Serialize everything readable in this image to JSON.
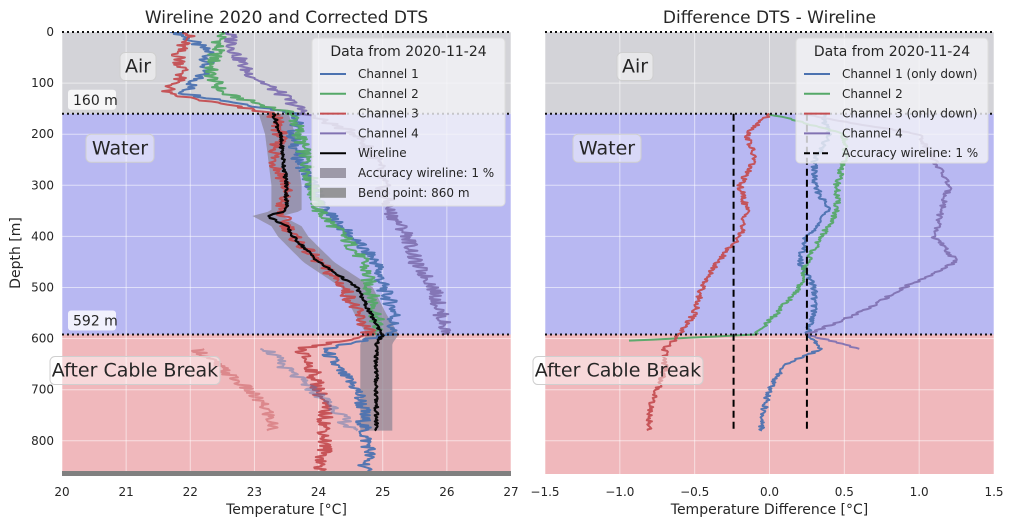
{
  "chart_data": [
    {
      "type": "line",
      "title": "Wireline 2020 and Corrected DTS",
      "xlabel": "Temperature [°C]",
      "ylabel": "Depth [m]",
      "xlim": [
        20,
        27
      ],
      "ylim": [
        865,
        0
      ],
      "xticks": [
        20,
        21,
        22,
        23,
        24,
        25,
        26,
        27
      ],
      "yticks": [
        0,
        100,
        200,
        300,
        400,
        500,
        600,
        700,
        800
      ],
      "grid": true,
      "legend": {
        "title": "Data from 2020-11-24",
        "placement": "top-right",
        "entries": [
          "Channel 1",
          "Channel 2",
          "Channel 3",
          "Channel 4",
          "Wireline",
          "Accuracy wireline: 1 %",
          "Bend point: 860 m"
        ]
      },
      "regions": [
        {
          "label": "Air",
          "from": 0,
          "to": 160,
          "color": "#d3d3d8"
        },
        {
          "label": "Water",
          "from": 160,
          "to": 592,
          "color": "#b8b8f2"
        },
        {
          "label": "After Cable Break",
          "from": 592,
          "to": 865,
          "color": "#f0b8bc"
        }
      ],
      "boundary_labels": [
        "160 m",
        "592 m"
      ],
      "boundaries": [
        160,
        592
      ],
      "bend_point": 860,
      "series": [
        {
          "name": "Channel 1",
          "color": "#4c72b0",
          "depth": [
            0,
            40,
            80,
            120,
            160,
            200,
            250,
            300,
            350,
            400,
            450,
            500,
            550,
            592,
            620,
            660,
            700,
            740,
            780,
            820,
            860
          ],
          "values": [
            21.8,
            22.3,
            22.2,
            21.9,
            23.7,
            23.6,
            23.7,
            23.9,
            24.1,
            24.5,
            24.9,
            25.0,
            25.2,
            25.1,
            24.1,
            24.3,
            24.6,
            24.7,
            24.7,
            24.8,
            24.7
          ]
        },
        {
          "name": "Channel 2",
          "color": "#55a868",
          "depth": [
            0,
            40,
            80,
            120,
            160,
            200,
            250,
            300,
            350,
            400,
            450,
            500,
            550,
            592
          ],
          "values": [
            22.5,
            22.4,
            22.3,
            22.5,
            23.6,
            23.7,
            23.8,
            23.9,
            24.0,
            24.4,
            24.7,
            24.8,
            24.9,
            24.9
          ]
        },
        {
          "name": "Channel 3",
          "color": "#c44e52",
          "depth": [
            0,
            40,
            80,
            120,
            160,
            200,
            250,
            300,
            350,
            400,
            450,
            500,
            550,
            592,
            620,
            660,
            700,
            740,
            780,
            820,
            860
          ],
          "values": [
            22.0,
            21.8,
            21.9,
            21.6,
            23.3,
            23.4,
            23.3,
            23.5,
            23.4,
            23.6,
            24.0,
            24.4,
            24.6,
            24.8,
            23.7,
            23.9,
            24.0,
            24.1,
            24.1,
            24.1,
            24.0
          ]
        },
        {
          "name": "Channel 4",
          "color": "#8172b2",
          "depth": [
            0,
            40,
            80,
            120,
            160,
            200,
            250,
            300,
            350,
            400,
            450,
            500,
            550,
            592
          ],
          "values": [
            22.6,
            22.7,
            22.9,
            23.4,
            23.8,
            24.6,
            24.9,
            25.0,
            25.1,
            25.4,
            25.5,
            25.8,
            25.9,
            26.0
          ]
        },
        {
          "name": "Wireline",
          "color": "#000000",
          "depth": [
            160,
            200,
            250,
            300,
            350,
            360,
            380,
            400,
            450,
            500,
            550,
            592,
            610,
            650,
            700,
            750,
            780
          ],
          "values": [
            23.3,
            23.4,
            23.45,
            23.5,
            23.5,
            23.2,
            23.5,
            23.6,
            24.0,
            24.6,
            24.8,
            25.0,
            24.9,
            24.9,
            24.9,
            24.9,
            24.9
          ]
        },
        {
          "name": "Channel 1 (after break)",
          "color": "#4c72b0",
          "faded": true,
          "depth": [
            620,
            660,
            700,
            740,
            780
          ],
          "values": [
            23.2,
            23.5,
            23.9,
            24.3,
            24.5
          ]
        },
        {
          "name": "Channel 3 (after break)",
          "color": "#c44e52",
          "faded": true,
          "depth": [
            620,
            660,
            700,
            740,
            780
          ],
          "values": [
            22.1,
            22.5,
            22.9,
            23.2,
            23.3
          ]
        }
      ],
      "bands": [
        {
          "name": "Accuracy wireline: 1 %",
          "color": "#8a8494",
          "accuracy": 0.01,
          "depth": [
            160,
            200,
            250,
            300,
            350,
            360,
            380,
            400,
            450,
            500,
            550,
            592,
            610,
            650,
            700,
            750,
            780
          ],
          "center": [
            23.3,
            23.4,
            23.45,
            23.5,
            23.5,
            23.2,
            23.5,
            23.6,
            24.0,
            24.6,
            24.8,
            25.0,
            24.9,
            24.9,
            24.9,
            24.9,
            24.9
          ]
        }
      ]
    },
    {
      "type": "line",
      "title": "Difference DTS - Wireline",
      "xlabel": "Temperature Difference [°C]",
      "ylabel": "",
      "xlim": [
        -1.5,
        1.5
      ],
      "ylim": [
        865,
        0
      ],
      "xticks": [
        -1.5,
        -1.0,
        -0.5,
        0.0,
        0.5,
        1.0,
        1.5
      ],
      "xticklabels": [
        "−1.5",
        "−1.0",
        "−0.5",
        "0.0",
        "0.5",
        "1.0",
        "1.5"
      ],
      "grid": true,
      "legend": {
        "title": "Data from 2020-11-24",
        "placement": "top-right",
        "entries": [
          "Channel 1 (only down)",
          "Channel 2",
          "Channel 3 (only down)",
          "Channel 4",
          "Accuracy wireline: 1 %"
        ]
      },
      "regions": [
        {
          "label": "Air",
          "from": 0,
          "to": 160,
          "color": "#d3d3d8"
        },
        {
          "label": "Water",
          "from": 160,
          "to": 592,
          "color": "#b8b8f2"
        },
        {
          "label": "After Cable Break",
          "from": 592,
          "to": 865,
          "color": "#f0b8bc"
        }
      ],
      "boundaries": [
        160,
        592
      ],
      "series": [
        {
          "name": "Channel 1 (only down)",
          "color": "#4c72b0",
          "depth": [
            160,
            200,
            250,
            300,
            350,
            400,
            450,
            500,
            550,
            592,
            620,
            650,
            700,
            750,
            780
          ],
          "values": [
            0.35,
            0.4,
            0.3,
            0.3,
            0.4,
            0.25,
            0.2,
            0.3,
            0.3,
            0.25,
            0.35,
            0.1,
            0.0,
            -0.05,
            -0.05
          ]
        },
        {
          "name": "Channel 2",
          "color": "#55a868",
          "depth": [
            160,
            200,
            250,
            300,
            350,
            400,
            450,
            500,
            550,
            592,
            605
          ],
          "values": [
            0.0,
            0.5,
            0.5,
            0.45,
            0.45,
            0.35,
            0.25,
            0.2,
            0.05,
            -0.1,
            -1.0
          ]
        },
        {
          "name": "Channel 3 (only down)",
          "color": "#c44e52",
          "depth": [
            160,
            200,
            250,
            300,
            350,
            400,
            450,
            500,
            550,
            592,
            620,
            660,
            700,
            740,
            780
          ],
          "values": [
            0.0,
            -0.15,
            -0.1,
            -0.2,
            -0.15,
            -0.2,
            -0.35,
            -0.45,
            -0.5,
            -0.6,
            -0.7,
            -0.7,
            -0.75,
            -0.8,
            -0.8
          ]
        },
        {
          "name": "Channel 4",
          "color": "#8172b2",
          "depth": [
            160,
            200,
            250,
            300,
            350,
            400,
            450,
            500,
            550,
            592,
            620
          ],
          "values": [
            0.2,
            1.0,
            1.1,
            1.2,
            1.15,
            1.1,
            1.25,
            0.9,
            0.6,
            0.25,
            0.6
          ]
        }
      ],
      "accuracy_lines": {
        "name": "Accuracy wireline: 1 %",
        "values": [
          -0.24,
          0.25
        ],
        "from": 160,
        "to": 780
      }
    }
  ]
}
